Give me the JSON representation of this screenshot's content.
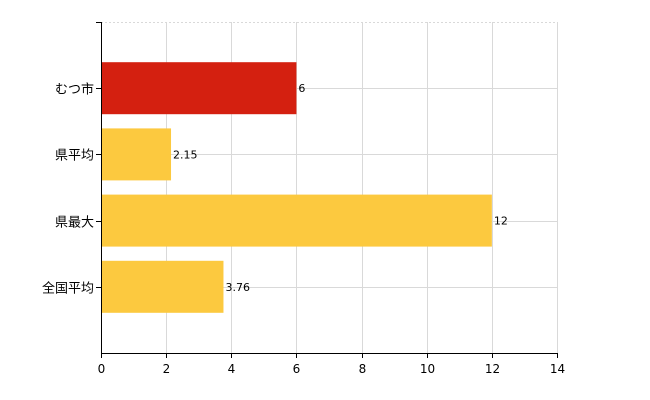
{
  "chart_data": {
    "type": "bar",
    "orientation": "horizontal",
    "title": "",
    "xlabel": "",
    "ylabel": "",
    "categories": [
      "むつ市",
      "県平均",
      "県最大",
      "全国平均"
    ],
    "values": [
      6,
      2.15,
      12,
      3.76
    ],
    "value_labels": [
      "6",
      "2.15",
      "12",
      "3.76"
    ],
    "bar_colors": [
      "#d42010",
      "#fcc93f",
      "#fcc93f",
      "#fcc93f"
    ],
    "xlim": [
      0,
      14
    ],
    "xticks": [
      0,
      2,
      4,
      6,
      8,
      10,
      12,
      14
    ],
    "xtick_labels": [
      "0",
      "2",
      "4",
      "6",
      "8",
      "10",
      "12",
      "14"
    ],
    "grid": true,
    "legend": "none"
  }
}
